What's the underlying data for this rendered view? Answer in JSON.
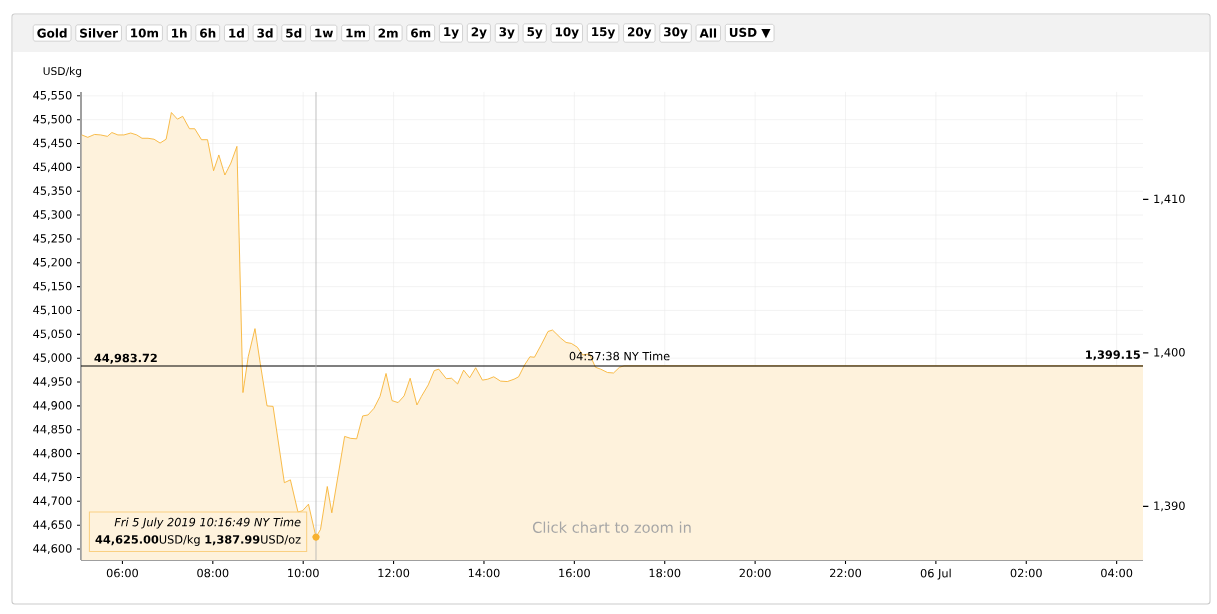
{
  "chart_data": {
    "type": "area",
    "ylabel": "USD/kg",
    "xlim": [
      "2019-07-05T05:05",
      "2019-07-06T04:35"
    ],
    "xticks": [
      {
        "value": "2019-07-05T06:00",
        "label": "06:00"
      },
      {
        "value": "2019-07-05T08:00",
        "label": "08:00"
      },
      {
        "value": "2019-07-05T10:00",
        "label": "10:00"
      },
      {
        "value": "2019-07-05T12:00",
        "label": "12:00"
      },
      {
        "value": "2019-07-05T14:00",
        "label": "14:00"
      },
      {
        "value": "2019-07-05T16:00",
        "label": "16:00"
      },
      {
        "value": "2019-07-05T18:00",
        "label": "18:00"
      },
      {
        "value": "2019-07-05T20:00",
        "label": "20:00"
      },
      {
        "value": "2019-07-05T22:00",
        "label": "22:00"
      },
      {
        "value": "2019-07-06T00:00",
        "label": "06 Jul"
      },
      {
        "value": "2019-07-06T02:00",
        "label": "02:00"
      },
      {
        "value": "2019-07-06T04:00",
        "label": "04:00"
      }
    ],
    "ylim": [
      44577,
      45558
    ],
    "yticks": [
      {
        "value": 44600,
        "label": "44,600"
      },
      {
        "value": 44650,
        "label": "44,650"
      },
      {
        "value": 44700,
        "label": "44,700"
      },
      {
        "value": 44750,
        "label": "44,750"
      },
      {
        "value": 44800,
        "label": "44,800"
      },
      {
        "value": 44850,
        "label": "44,850"
      },
      {
        "value": 44900,
        "label": "44,900"
      },
      {
        "value": 44950,
        "label": "44,950"
      },
      {
        "value": 45000,
        "label": "45,000"
      },
      {
        "value": 45050,
        "label": "45,050"
      },
      {
        "value": 45100,
        "label": "45,100"
      },
      {
        "value": 45150,
        "label": "45,150"
      },
      {
        "value": 45200,
        "label": "45,200"
      },
      {
        "value": 45250,
        "label": "45,250"
      },
      {
        "value": 45300,
        "label": "45,300"
      },
      {
        "value": 45350,
        "label": "45,350"
      },
      {
        "value": 45400,
        "label": "45,400"
      },
      {
        "value": 45450,
        "label": "45,450"
      },
      {
        "value": 45500,
        "label": "45,500"
      },
      {
        "value": 45550,
        "label": "45,550"
      }
    ],
    "y2lim": [
      1386.5,
      1417.0
    ],
    "y2ticks": [
      {
        "value": 1390,
        "label": "1,390"
      },
      {
        "value": 1400,
        "label": "1,400"
      },
      {
        "value": 1410,
        "label": "1,410"
      }
    ],
    "grid": true,
    "series": [
      {
        "color": "#f7b12f",
        "x": [
          "2019-07-05T05:06",
          "2019-07-05T05:14",
          "2019-07-05T05:23",
          "2019-07-05T05:31",
          "2019-07-05T05:40",
          "2019-07-05T05:46",
          "2019-07-05T05:54",
          "2019-07-05T06:02",
          "2019-07-05T06:11",
          "2019-07-05T06:19",
          "2019-07-05T06:26",
          "2019-07-05T06:34",
          "2019-07-05T06:42",
          "2019-07-05T06:50",
          "2019-07-05T06:58",
          "2019-07-05T07:05",
          "2019-07-05T07:13",
          "2019-07-05T07:20",
          "2019-07-05T07:29",
          "2019-07-05T07:36",
          "2019-07-05T07:45",
          "2019-07-05T07:53",
          "2019-07-05T08:01",
          "2019-07-05T08:08",
          "2019-07-05T08:16",
          "2019-07-05T08:24",
          "2019-07-05T08:32",
          "2019-07-05T08:40",
          "2019-07-05T08:47",
          "2019-07-05T08:56",
          "2019-07-05T09:03",
          "2019-07-05T09:12",
          "2019-07-05T09:20",
          "2019-07-05T09:35",
          "2019-07-05T09:43",
          "2019-07-05T09:53",
          "2019-07-05T09:59",
          "2019-07-05T10:07",
          "2019-07-05T10:17",
          "2019-07-05T10:23",
          "2019-07-05T10:32",
          "2019-07-05T10:38",
          "2019-07-05T10:55",
          "2019-07-05T11:03",
          "2019-07-05T11:11",
          "2019-07-05T11:19",
          "2019-07-05T11:26",
          "2019-07-05T11:34",
          "2019-07-05T11:42",
          "2019-07-05T11:50",
          "2019-07-05T11:58",
          "2019-07-05T12:06",
          "2019-07-05T12:14",
          "2019-07-05T12:22",
          "2019-07-05T12:31",
          "2019-07-05T12:37",
          "2019-07-05T12:46",
          "2019-07-05T12:54",
          "2019-07-05T13:00",
          "2019-07-05T13:10",
          "2019-07-05T13:17",
          "2019-07-05T13:25",
          "2019-07-05T13:33",
          "2019-07-05T13:41",
          "2019-07-05T13:49",
          "2019-07-05T13:58",
          "2019-07-05T14:05",
          "2019-07-05T14:13",
          "2019-07-05T14:22",
          "2019-07-05T14:31",
          "2019-07-05T14:40",
          "2019-07-05T14:46",
          "2019-07-05T14:54",
          "2019-07-05T15:01",
          "2019-07-05T15:07",
          "2019-07-05T15:16",
          "2019-07-05T15:25",
          "2019-07-05T15:31",
          "2019-07-05T15:42",
          "2019-07-05T15:49",
          "2019-07-05T15:56",
          "2019-07-05T16:04",
          "2019-07-05T16:11",
          "2019-07-05T16:20",
          "2019-07-05T16:28",
          "2019-07-05T16:35",
          "2019-07-05T16:44",
          "2019-07-05T16:52",
          "2019-07-05T17:00",
          "2019-07-05T17:06",
          "2019-07-06T04:35"
        ],
        "values": [
          45468,
          45463,
          45469,
          45468,
          45465,
          45473,
          45468,
          45468,
          45472,
          45468,
          45461,
          45461,
          45459,
          45451,
          45459,
          45515,
          45501,
          45507,
          45481,
          45481,
          45458,
          45458,
          45393,
          45426,
          45384,
          45409,
          45444,
          44928,
          45003,
          45062,
          44989,
          44900,
          44899,
          44739,
          44745,
          44678,
          44680,
          44694,
          44625,
          44641,
          44731,
          44676,
          44836,
          44832,
          44831,
          44879,
          44881,
          44895,
          44920,
          44968,
          44911,
          44907,
          44921,
          44958,
          44902,
          44920,
          44944,
          44974,
          44977,
          44957,
          44958,
          44946,
          44975,
          44959,
          44980,
          44954,
          44956,
          44961,
          44952,
          44951,
          44956,
          44961,
          44986,
          45003,
          45002,
          45028,
          45056,
          45059,
          45042,
          45033,
          45031,
          45023,
          45007,
          45009,
          44981,
          44977,
          44970,
          44969,
          44981,
          44984,
          44984
        ]
      }
    ],
    "ref_lines": [
      {
        "axis": "y",
        "value": 44983.72,
        "label": "44,983.72",
        "color": "#000000"
      },
      {
        "axis": "x",
        "value": "2019-07-05T10:17",
        "color": "#b0b0b0"
      }
    ],
    "annotations": [
      "Gold",
      "Silver",
      "10m",
      "1h",
      "6h",
      "1d",
      "3d",
      "5d",
      "1w",
      "1m",
      "2m",
      "6m",
      "1y",
      "2y",
      "3y",
      "5y",
      "10y",
      "15y",
      "20y",
      "30y",
      "All",
      "USD ▼",
      "Click chart to zoom in",
      {
        "text": "04:57:38 NY Time",
        "x": "2019-07-05T17:00",
        "y": 44983.72
      },
      {
        "text": "1,399.15",
        "x": "2019-07-06T04:35",
        "y": 44983.72
      },
      {
        "text": "Fri 5 July 2019 10:16:49 NY Time",
        "x": "2019-07-05T10:17",
        "y": 44625
      },
      {
        "text": "**44,625.00**USD/kg **1,387.99**USD/oz",
        "x": "2019-07-05T10:17",
        "y": 44625
      }
    ]
  }
}
